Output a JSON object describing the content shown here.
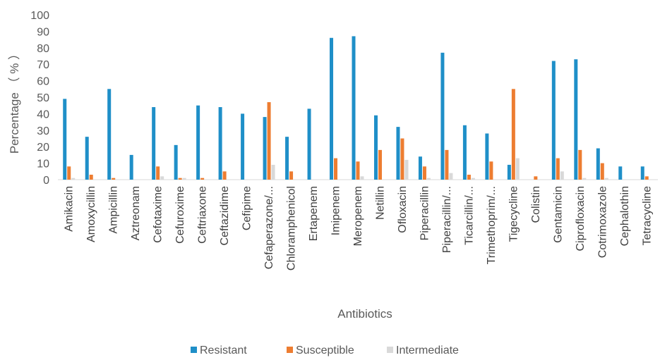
{
  "chart_data": {
    "type": "bar",
    "xlabel": "Antibiotics",
    "ylabel": "Percentage （ % ）",
    "ylim": [
      0,
      100
    ],
    "yticks": [
      0,
      10,
      20,
      30,
      40,
      50,
      60,
      70,
      80,
      90,
      100
    ],
    "grid": false,
    "legend_position": "bottom",
    "categories": [
      "Amikacin",
      "Amoxycillin",
      "Ampicillin",
      "Aztreonam",
      "Cefotaxime",
      "Cefuroxime",
      "Ceftriaxone",
      "Ceftazidime",
      "Cefipime",
      "Cefaperazone/...",
      "Chloramphenicol",
      "Ertapenem",
      "Imipenem",
      "Meropenem",
      "Netillin",
      "Ofloxacin",
      "Piperacillin",
      "Piperacillin/...",
      "Ticarcillin/...",
      "Trimethoprim/...",
      "Tigecycline",
      "Colistin",
      "Gentamicin",
      "Ciprofloxacin",
      "Cotrimoxazole",
      "Cephalothin",
      "Tetracycline"
    ],
    "series": [
      {
        "name": "Resistant",
        "color": "#1f8fc8",
        "values": [
          49,
          26,
          55,
          15,
          44,
          21,
          45,
          44,
          40,
          38,
          26,
          43,
          86,
          87,
          39,
          32,
          14,
          77,
          33,
          28,
          9,
          0,
          72,
          73,
          19,
          8,
          8
        ]
      },
      {
        "name": "Susceptible",
        "color": "#ed7d31",
        "values": [
          8,
          3,
          1,
          0,
          8,
          1,
          1,
          5,
          0,
          47,
          5,
          0,
          13,
          11,
          18,
          25,
          8,
          18,
          3,
          11,
          55,
          2,
          13,
          18,
          10,
          0,
          2
        ]
      },
      {
        "name": "Intermediate",
        "color": "#d9d9d9",
        "values": [
          1,
          0,
          0,
          0,
          2,
          1,
          0,
          0,
          0,
          9,
          0,
          0,
          0,
          2,
          0,
          12,
          1,
          4,
          1,
          0,
          13,
          0,
          5,
          1,
          1,
          0,
          0
        ]
      }
    ]
  }
}
